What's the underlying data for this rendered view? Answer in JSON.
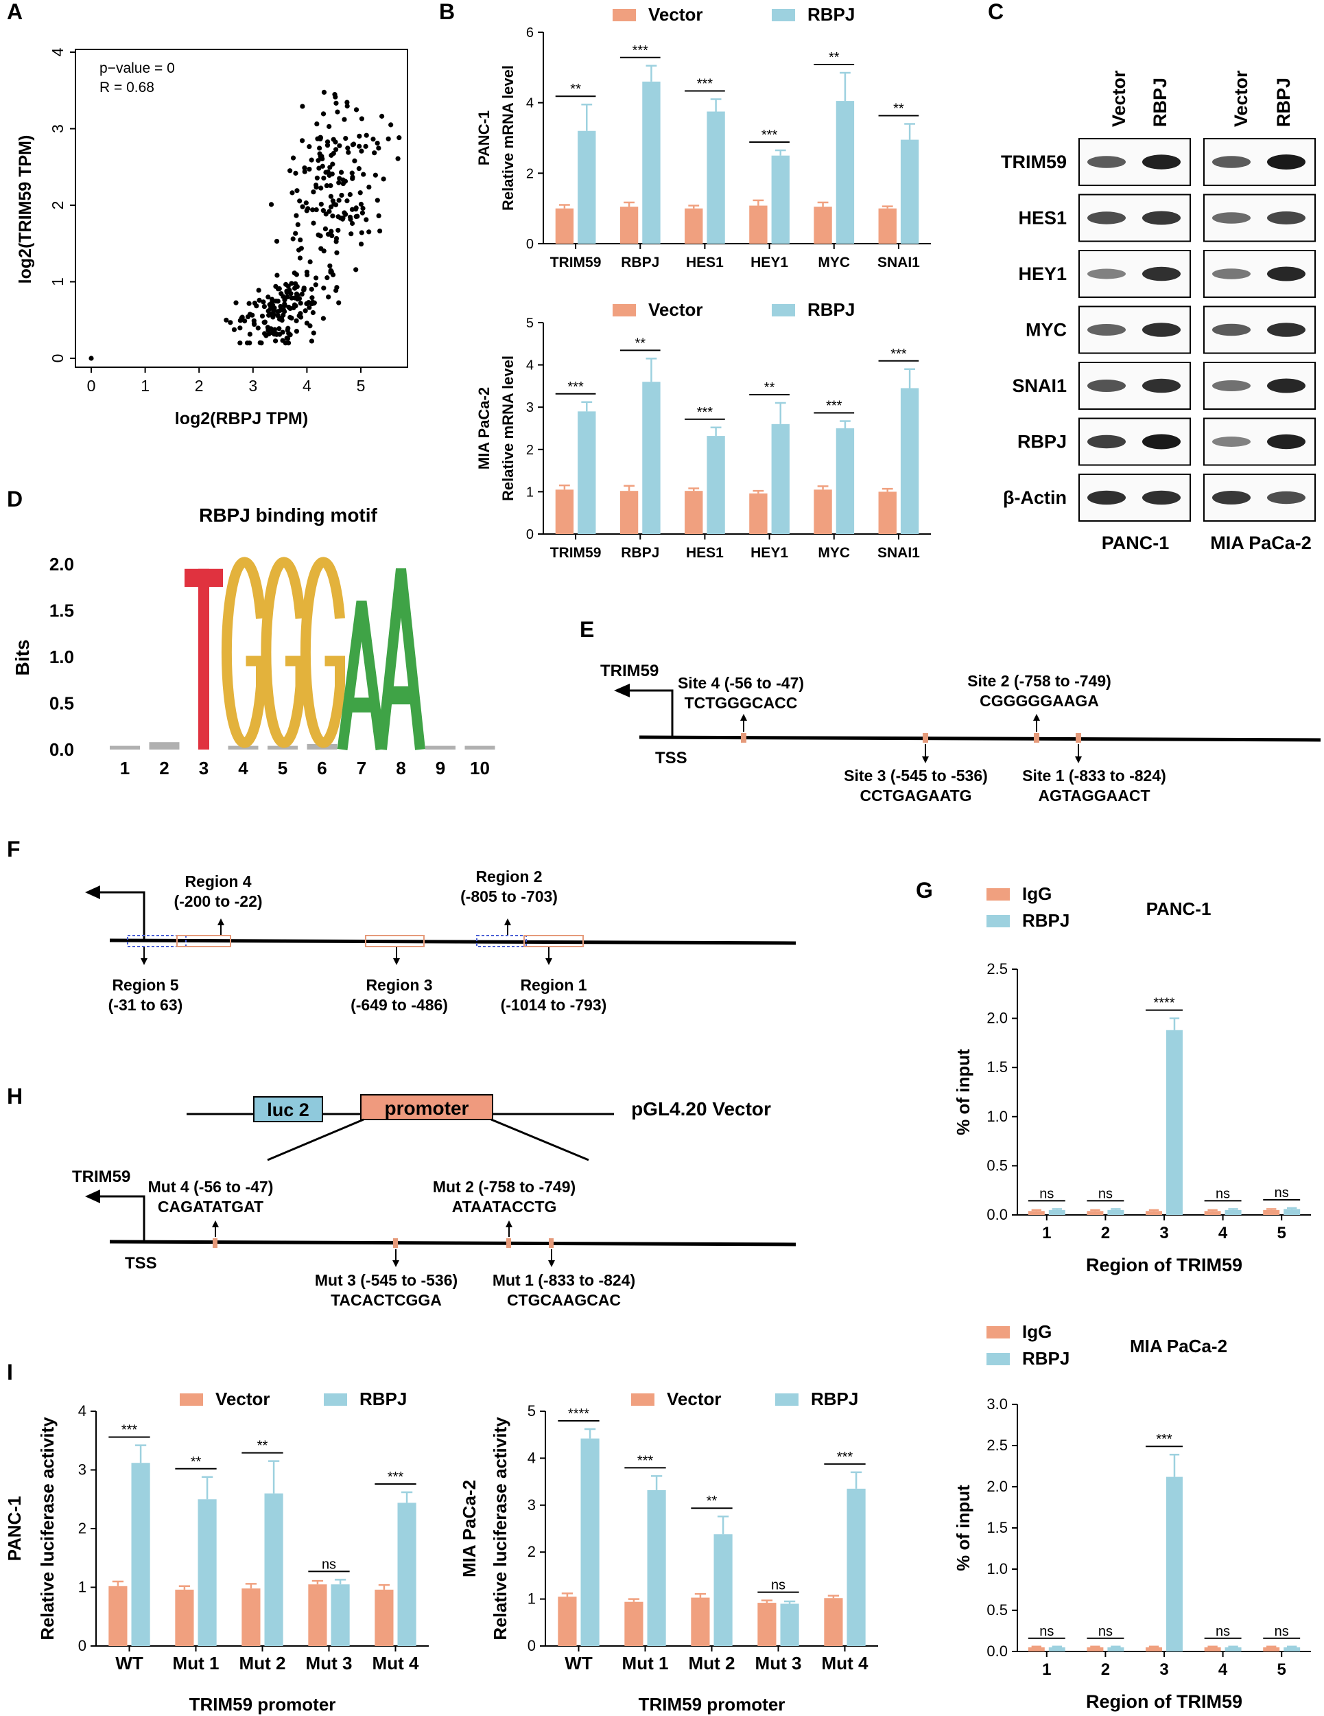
{
  "colors": {
    "vector": "#f0a07f",
    "rbpj": "#9dd1df",
    "blot_band": "#1a1a1a",
    "motif_T": "#e0323f",
    "motif_G": "#e3b23c",
    "motif_A": "#3fa346",
    "site_mark": "#e59a7a",
    "region_box": "#e59a7a",
    "region5_box": "#4a5fd4",
    "luc2": "#8fc9dc",
    "promoter": "#ef9a7e"
  },
  "panel_labels": {
    "A": "A",
    "B": "B",
    "C": "C",
    "D": "D",
    "E": "E",
    "F": "F",
    "G": "G",
    "H": "H",
    "I": "I"
  },
  "legend": {
    "vector": "Vector",
    "rbpj": "RBPJ",
    "igg": "IgG"
  },
  "panelA": {
    "stat1": "p−value = 0",
    "stat2": "R = 0.68",
    "xlabel": "log2(RBPJ TPM)",
    "ylabel": "log2(TRIM59 TPM)",
    "chart_data": {
      "type": "scatter",
      "xlim": [
        0,
        5.75
      ],
      "ylim": [
        0,
        4
      ],
      "xticks": [
        "0",
        "1",
        "2",
        "3",
        "4",
        "5"
      ],
      "yticks": [
        "0",
        "1",
        "2",
        "3",
        "4"
      ],
      "title": "",
      "note": "approximately 330 TCGA samples; points generated to match the cloud shape"
    }
  },
  "panelB": {
    "categories": [
      "TRIM59",
      "RBPJ",
      "HES1",
      "HEY1",
      "MYC",
      "SNAI1"
    ],
    "ylabel_common": "Relative mRNA level",
    "charts": [
      {
        "cell": "PANC-1",
        "yticks": [
          "0",
          "2",
          "4",
          "6"
        ],
        "ylim": [
          0,
          6
        ],
        "vector": [
          1.0,
          1.05,
          1.0,
          1.08,
          1.05,
          1.0
        ],
        "vector_err": [
          0.1,
          0.12,
          0.08,
          0.15,
          0.12,
          0.06
        ],
        "rbpj": [
          3.2,
          4.6,
          3.75,
          2.5,
          4.05,
          2.95
        ],
        "rbpj_err": [
          0.75,
          0.45,
          0.35,
          0.15,
          0.8,
          0.45
        ],
        "sig": [
          "**",
          "***",
          "***",
          "***",
          "**",
          "**"
        ]
      },
      {
        "cell": "MIA PaCa-2",
        "yticks": [
          "0",
          "1",
          "2",
          "3",
          "4",
          "5"
        ],
        "ylim": [
          0,
          5
        ],
        "vector": [
          1.05,
          1.02,
          1.02,
          0.96,
          1.05,
          1.0
        ],
        "vector_err": [
          0.1,
          0.12,
          0.06,
          0.06,
          0.08,
          0.07
        ],
        "rbpj": [
          2.9,
          3.6,
          2.32,
          2.6,
          2.5,
          3.45
        ],
        "rbpj_err": [
          0.22,
          0.55,
          0.2,
          0.5,
          0.17,
          0.45
        ],
        "sig": [
          "***",
          "**",
          "***",
          "**",
          "***",
          "***"
        ]
      }
    ]
  },
  "panelC": {
    "columns": [
      "Vector",
      "RBPJ",
      "Vector",
      "RBPJ"
    ],
    "rows": [
      "TRIM59",
      "HES1",
      "HEY1",
      "MYC",
      "SNAI1",
      "RBPJ",
      "β-Actin"
    ],
    "cells": [
      "PANC-1",
      "MIA PaCa-2"
    ],
    "intensity_ratio_note": "band intensity relative to Vector per row (left, right)",
    "bands": [
      [
        [
          0.55,
          0.95
        ],
        [
          0.55,
          1.0
        ]
      ],
      [
        [
          0.65,
          0.8
        ],
        [
          0.45,
          0.7
        ]
      ],
      [
        [
          0.3,
          0.85
        ],
        [
          0.35,
          0.9
        ]
      ],
      [
        [
          0.5,
          0.85
        ],
        [
          0.55,
          0.85
        ]
      ],
      [
        [
          0.6,
          0.85
        ],
        [
          0.4,
          0.9
        ]
      ],
      [
        [
          0.75,
          1.0
        ],
        [
          0.3,
          0.95
        ]
      ],
      [
        [
          0.85,
          0.85
        ],
        [
          0.8,
          0.65
        ]
      ]
    ]
  },
  "panelD": {
    "title": "RBPJ binding motif",
    "ylabel": "Bits",
    "yticks": [
      "0.0",
      "0.5",
      "1.0",
      "1.5",
      "2.0"
    ],
    "positions": [
      "1",
      "2",
      "3",
      "4",
      "5",
      "6",
      "7",
      "8",
      "9",
      "10"
    ],
    "chart_data": {
      "type": "motif",
      "ylim": [
        0,
        2
      ],
      "letters": [
        "T",
        "G",
        "G",
        "G",
        "A",
        "A"
      ],
      "letter_positions": [
        3,
        4,
        5,
        6,
        7,
        8
      ],
      "heights": [
        1.95,
        1.95,
        1.95,
        1.95,
        1.6,
        1.95
      ]
    }
  },
  "panelE": {
    "gene": "TRIM59",
    "tss": "TSS",
    "sites_above": [
      {
        "label": "Site 4 (-56 to -47)",
        "seq": "TCTGGGCACC"
      },
      {
        "label": "Site 2 (-758 to -749)",
        "seq": "CGGGGGAAGA"
      }
    ],
    "sites_below": [
      {
        "label": "Site 3 (-545 to -536)",
        "seq": "CCTGAGAATG"
      },
      {
        "label": "Site 1 (-833 to -824)",
        "seq": "AGTAGGAACT"
      }
    ]
  },
  "panelF": {
    "regions_above": [
      {
        "label": "Region 4",
        "range": "(-200 to -22)"
      },
      {
        "label": "Region 2",
        "range": "(-805 to -703)"
      }
    ],
    "regions_below": [
      {
        "label": "Region 5",
        "range": "(-31 to 63)"
      },
      {
        "label": "Region 3",
        "range": "(-649 to -486)"
      },
      {
        "label": "Region 1",
        "range": "(-1014 to -793)"
      }
    ]
  },
  "panelG": {
    "xlabel": "Region of TRIM59",
    "ylabel": "% of input",
    "categories": [
      "1",
      "2",
      "3",
      "4",
      "5"
    ],
    "charts": [
      {
        "cell": "PANC-1",
        "yticks": [
          "0.0",
          "0.5",
          "1.0",
          "1.5",
          "2.0",
          "2.5"
        ],
        "ylim": [
          0,
          2.5
        ],
        "igg": [
          0.04,
          0.04,
          0.04,
          0.04,
          0.05
        ],
        "igg_err": [
          0.01,
          0.01,
          0.01,
          0.01,
          0.01
        ],
        "rbpj": [
          0.05,
          0.05,
          1.88,
          0.05,
          0.06
        ],
        "rbpj_err": [
          0.01,
          0.01,
          0.12,
          0.01,
          0.01
        ],
        "sig": [
          "ns",
          "ns",
          "****",
          "ns",
          "ns"
        ]
      },
      {
        "cell": "MIA PaCa-2",
        "yticks": [
          "0.0",
          "0.5",
          "1.0",
          "1.5",
          "2.0",
          "2.5",
          "3.0"
        ],
        "ylim": [
          0,
          3
        ],
        "igg": [
          0.05,
          0.05,
          0.05,
          0.05,
          0.05
        ],
        "igg_err": [
          0.01,
          0.01,
          0.01,
          0.01,
          0.01
        ],
        "rbpj": [
          0.05,
          0.05,
          2.12,
          0.05,
          0.05
        ],
        "rbpj_err": [
          0.01,
          0.01,
          0.27,
          0.01,
          0.01
        ],
        "sig": [
          "ns",
          "ns",
          "***",
          "ns",
          "ns"
        ]
      }
    ]
  },
  "panelH": {
    "luc2": "luc 2",
    "promoter": "promoter",
    "vector_name": "pGL4.20 Vector",
    "gene": "TRIM59",
    "tss": "TSS",
    "muts_above": [
      {
        "label": "Mut 4 (-56 to -47)",
        "seq": "CAGATATGAT"
      },
      {
        "label": "Mut 2 (-758 to -749)",
        "seq": "ATAATACCTG"
      }
    ],
    "muts_below": [
      {
        "label": "Mut 3 (-545 to -536)",
        "seq": "TACACTCGGA"
      },
      {
        "label": "Mut 1 (-833 to -824)",
        "seq": "CTGCAAGCAC"
      }
    ]
  },
  "panelI": {
    "categories": [
      "WT",
      "Mut 1",
      "Mut 2",
      "Mut 3",
      "Mut 4"
    ],
    "xlabel": "TRIM59 promoter",
    "ylabel_common": "Relative luciferase activity",
    "charts": [
      {
        "cell": "PANC-1",
        "yticks": [
          "0",
          "1",
          "2",
          "3",
          "4"
        ],
        "ylim": [
          0,
          4
        ],
        "vector": [
          1.02,
          0.96,
          0.98,
          1.05,
          0.96
        ],
        "vector_err": [
          0.08,
          0.06,
          0.08,
          0.06,
          0.08
        ],
        "rbpj": [
          3.12,
          2.5,
          2.6,
          1.05,
          2.44
        ],
        "rbpj_err": [
          0.3,
          0.38,
          0.55,
          0.08,
          0.18
        ],
        "sig": [
          "***",
          "**",
          "**",
          "ns",
          "***"
        ]
      },
      {
        "cell": "MIA PaCa-2",
        "yticks": [
          "0",
          "1",
          "2",
          "3",
          "4",
          "5"
        ],
        "ylim": [
          0,
          5
        ],
        "vector": [
          1.05,
          0.94,
          1.03,
          0.92,
          1.02
        ],
        "vector_err": [
          0.07,
          0.06,
          0.08,
          0.05,
          0.05
        ],
        "rbpj": [
          4.42,
          3.32,
          2.38,
          0.9,
          3.35
        ],
        "rbpj_err": [
          0.2,
          0.3,
          0.38,
          0.05,
          0.35
        ],
        "sig": [
          "****",
          "***",
          "**",
          "ns",
          "***"
        ]
      }
    ]
  }
}
